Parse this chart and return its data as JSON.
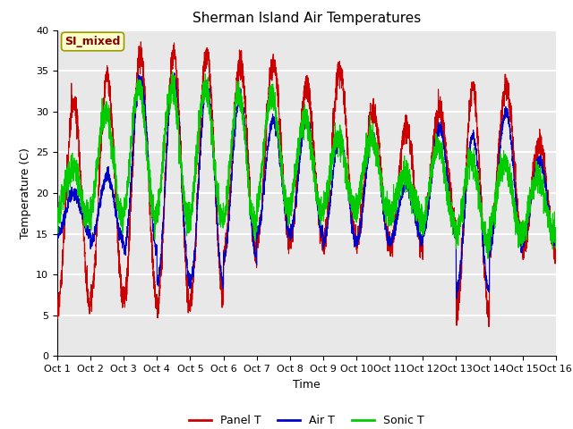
{
  "title": "Sherman Island Air Temperatures",
  "xlabel": "Time",
  "ylabel": "Temperature (C)",
  "ylim": [
    0,
    40
  ],
  "xlim": [
    0,
    15
  ],
  "xtick_labels": [
    "Oct 1",
    "Oct 2",
    "Oct 3",
    "Oct 4",
    "Oct 5",
    "Oct 6",
    "Oct 7",
    "Oct 8",
    "Oct 9",
    "Oct 10",
    "Oct 11",
    "Oct 12",
    "Oct 13",
    "Oct 14",
    "Oct 15",
    "Oct 16"
  ],
  "legend_labels": [
    "Panel T",
    "Air T",
    "Sonic T"
  ],
  "panel_color": "#cc0000",
  "air_color": "#0000cc",
  "sonic_color": "#00cc00",
  "label_box_color": "#ffffcc",
  "label_box_edge": "#999900",
  "label_text": "SI_mixed",
  "label_text_color": "#880000",
  "bg_color": "#e8e8e8",
  "grid_color": "white",
  "title_fontsize": 11,
  "axis_fontsize": 9,
  "tick_fontsize": 8,
  "legend_fontsize": 9
}
